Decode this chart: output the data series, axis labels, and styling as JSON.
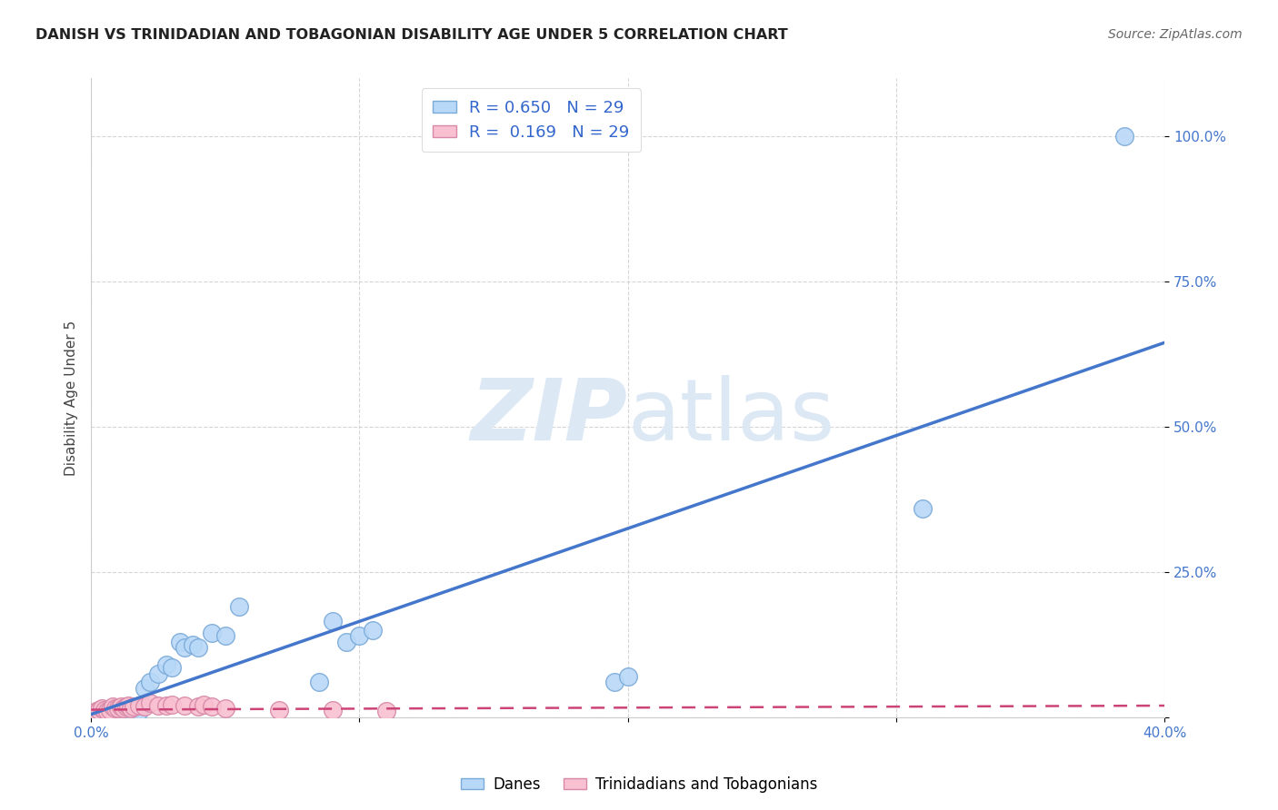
{
  "title": "DANISH VS TRINIDADIAN AND TOBAGONIAN DISABILITY AGE UNDER 5 CORRELATION CHART",
  "source": "Source: ZipAtlas.com",
  "ylabel_label": "Disability Age Under 5",
  "xlim": [
    0.0,
    0.4
  ],
  "ylim": [
    0.0,
    1.1
  ],
  "xticks": [
    0.0,
    0.1,
    0.2,
    0.3,
    0.4
  ],
  "xtick_labels": [
    "0.0%",
    "",
    "",
    "",
    "40.0%"
  ],
  "ytick_labels": [
    "100.0%",
    "75.0%",
    "50.0%",
    "25.0%",
    ""
  ],
  "ytick_positions": [
    1.0,
    0.75,
    0.5,
    0.25,
    0.0
  ],
  "grid_color": "#cccccc",
  "background_color": "#ffffff",
  "danes_color": "#b8d8f8",
  "danes_edge_color": "#7aaad8",
  "trini_color": "#f8c0d0",
  "trini_edge_color": "#d888a8",
  "danes_R": 0.65,
  "danes_N": 29,
  "trini_R": 0.169,
  "trini_N": 29,
  "danes_line_color": "#4477cc",
  "trini_line_color": "#cc4477",
  "watermark_color": "#dde8f5",
  "legend_label_danes": "Danes",
  "legend_label_trini": "Trinidadians and Tobagonians",
  "danes_scatter_x": [
    0.003,
    0.005,
    0.007,
    0.009,
    0.01,
    0.012,
    0.015,
    0.018,
    0.02,
    0.022,
    0.025,
    0.028,
    0.03,
    0.033,
    0.035,
    0.038,
    0.04,
    0.045,
    0.05,
    0.055,
    0.085,
    0.09,
    0.095,
    0.1,
    0.105,
    0.195,
    0.2,
    0.31,
    0.385
  ],
  "danes_scatter_y": [
    0.012,
    0.01,
    0.01,
    0.01,
    0.012,
    0.008,
    0.012,
    0.01,
    0.05,
    0.06,
    0.075,
    0.09,
    0.085,
    0.13,
    0.12,
    0.125,
    0.12,
    0.145,
    0.14,
    0.19,
    0.06,
    0.165,
    0.13,
    0.14,
    0.15,
    0.06,
    0.07,
    0.36,
    1.0
  ],
  "trini_scatter_x": [
    0.002,
    0.003,
    0.004,
    0.005,
    0.006,
    0.007,
    0.008,
    0.009,
    0.01,
    0.011,
    0.012,
    0.013,
    0.014,
    0.015,
    0.016,
    0.018,
    0.02,
    0.022,
    0.025,
    0.028,
    0.03,
    0.035,
    0.04,
    0.042,
    0.045,
    0.05,
    0.07,
    0.09,
    0.11
  ],
  "trini_scatter_y": [
    0.01,
    0.012,
    0.015,
    0.012,
    0.01,
    0.012,
    0.018,
    0.015,
    0.015,
    0.018,
    0.015,
    0.018,
    0.02,
    0.015,
    0.018,
    0.02,
    0.018,
    0.025,
    0.02,
    0.02,
    0.022,
    0.02,
    0.018,
    0.022,
    0.018,
    0.015,
    0.012,
    0.012,
    0.01
  ],
  "danes_line_x0": 0.0,
  "danes_line_y0": 0.005,
  "danes_line_x1": 0.4,
  "danes_line_y1": 0.645,
  "trini_line_x0": 0.0,
  "trini_line_y0": 0.013,
  "trini_line_x1": 0.4,
  "trini_line_y1": 0.02
}
